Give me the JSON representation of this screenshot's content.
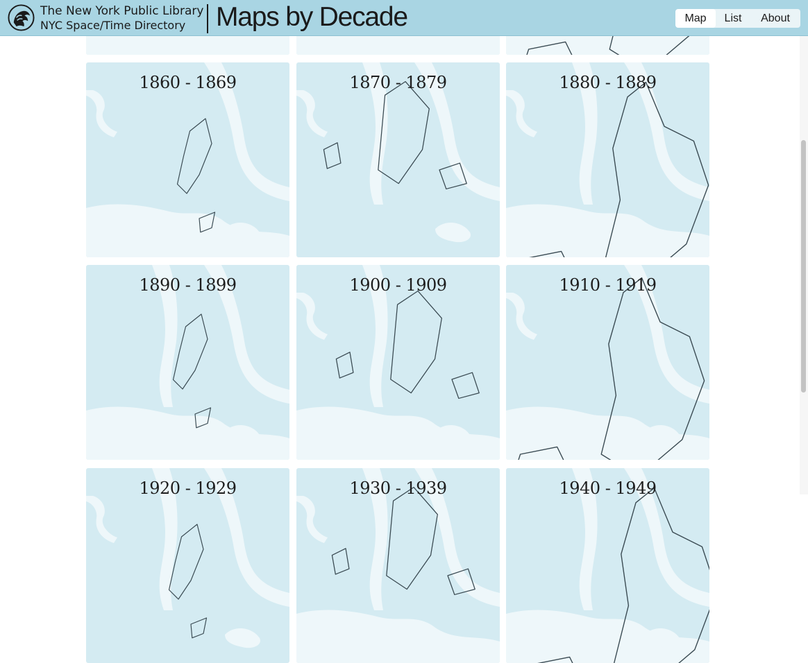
{
  "header": {
    "org_name": "The New York Public Library",
    "org_sub": "NYC Space/Time Directory",
    "app_title": "Maps by Decade",
    "logo_icon": "nypl-lion-icon"
  },
  "nav": {
    "map": "Map",
    "list": "List",
    "about": "About",
    "active": "Map"
  },
  "decades": [
    {
      "label": ""
    },
    {
      "label": ""
    },
    {
      "label": ""
    },
    {
      "label": "1860 - 1869"
    },
    {
      "label": "1870 - 1879"
    },
    {
      "label": "1880 - 1889"
    },
    {
      "label": "1890 - 1899"
    },
    {
      "label": "1900 - 1909"
    },
    {
      "label": "1910 - 1919"
    },
    {
      "label": "1920 - 1929"
    },
    {
      "label": "1930 - 1939"
    },
    {
      "label": "1940 - 1949"
    }
  ],
  "colors": {
    "header_bg": "#a9d5e3",
    "tile_land": "#d4ebf2",
    "tile_water": "#eef7fa",
    "outline": "#3a4a52"
  }
}
